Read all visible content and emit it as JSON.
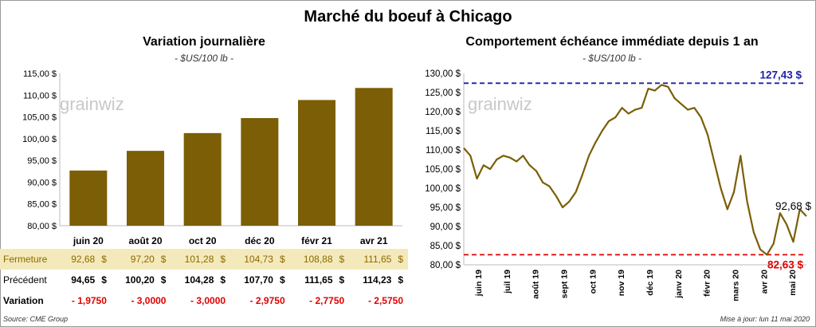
{
  "title": "Marché du boeuf à Chicago",
  "left_panel": {
    "title": "Variation journalière",
    "subtitle": "- $US/100 lb -",
    "watermark": "grainwiz"
  },
  "right_panel": {
    "title": "Comportement échéance immédiate depuis 1 an",
    "subtitle": "- $US/100 lb -",
    "watermark": "grainwiz"
  },
  "table": {
    "rows": [
      {
        "label": "Fermeture",
        "values": [
          "92,68",
          "97,20",
          "101,28",
          "104,73",
          "108,88",
          "111,65"
        ],
        "unit": "$"
      },
      {
        "label": "Précédent",
        "values": [
          "94,65",
          "100,20",
          "104,28",
          "107,70",
          "111,65",
          "114,23"
        ],
        "unit": "$"
      },
      {
        "label": "Variation",
        "values": [
          "- 1,9750",
          "- 3,0000",
          "- 3,0000",
          "- 2,9750",
          "- 2,7750",
          "- 2,5750"
        ],
        "unit": ""
      }
    ]
  },
  "footer": {
    "source": "Source: CME Group",
    "updated": "Mise à jour: lun 11 mai 2020"
  },
  "colors": {
    "bar": "#7b5e05",
    "line": "#7b5e05",
    "max_line": "#1f1fa8",
    "min_line": "#e00000",
    "ferm_bg": "#f4e9bb"
  },
  "chart_data": [
    {
      "type": "bar",
      "title": "Variation journalière",
      "subtitle": "- $US/100 lb -",
      "categories": [
        "juin 20",
        "août 20",
        "oct 20",
        "déc 20",
        "févr 21",
        "avr 21"
      ],
      "values": [
        92.68,
        97.2,
        101.28,
        104.73,
        108.88,
        111.65
      ],
      "ylim": [
        80,
        115
      ],
      "yticks": [
        "80,00 $",
        "85,00 $",
        "90,00 $",
        "95,00 $",
        "100,00 $",
        "105,00 $",
        "110,00 $",
        "115,00 $"
      ],
      "grid": false
    },
    {
      "type": "line",
      "title": "Comportement échéance immédiate depuis 1 an",
      "subtitle": "- $US/100 lb -",
      "ylim": [
        80,
        130
      ],
      "yticks": [
        "80,00 $",
        "85,00 $",
        "90,00 $",
        "95,00 $",
        "100,00 $",
        "105,00 $",
        "110,00 $",
        "115,00 $",
        "120,00 $",
        "125,00 $",
        "130,00 $"
      ],
      "xticks": [
        "juin 19",
        "juil 19",
        "août 19",
        "sept 19",
        "oct 19",
        "nov 19",
        "déc 19",
        "janv 20",
        "févr 20",
        "mars 20",
        "avr 20",
        "mai 20"
      ],
      "x": [
        "2019-05-13",
        "2019-05-20",
        "2019-05-27",
        "2019-06-03",
        "2019-06-10",
        "2019-06-17",
        "2019-06-24",
        "2019-07-01",
        "2019-07-08",
        "2019-07-15",
        "2019-07-22",
        "2019-07-29",
        "2019-08-05",
        "2019-08-12",
        "2019-08-19",
        "2019-08-26",
        "2019-09-02",
        "2019-09-09",
        "2019-09-16",
        "2019-09-23",
        "2019-09-30",
        "2019-10-07",
        "2019-10-14",
        "2019-10-21",
        "2019-10-28",
        "2019-11-04",
        "2019-11-11",
        "2019-11-18",
        "2019-11-25",
        "2019-12-02",
        "2019-12-09",
        "2019-12-16",
        "2019-12-23",
        "2019-12-30",
        "2020-01-06",
        "2020-01-13",
        "2020-01-20",
        "2020-01-27",
        "2020-02-03",
        "2020-02-10",
        "2020-02-17",
        "2020-02-24",
        "2020-03-02",
        "2020-03-09",
        "2020-03-16",
        "2020-03-23",
        "2020-03-30",
        "2020-04-06",
        "2020-04-13",
        "2020-04-20",
        "2020-04-27",
        "2020-05-04",
        "2020-05-11"
      ],
      "values": [
        110.5,
        108.5,
        102.5,
        106.0,
        105.0,
        107.5,
        108.5,
        108.0,
        107.0,
        108.5,
        106.0,
        104.5,
        101.5,
        100.5,
        98.0,
        95.0,
        96.5,
        99.0,
        103.5,
        108.5,
        112.0,
        115.0,
        117.5,
        118.5,
        121.0,
        119.5,
        120.5,
        121.0,
        126.0,
        125.5,
        127.0,
        126.5,
        123.5,
        122.0,
        120.5,
        121.0,
        118.5,
        114.0,
        107.0,
        100.0,
        94.5,
        99.0,
        108.5,
        96.5,
        88.5,
        84.0,
        82.63,
        85.5,
        93.5,
        90.5,
        86.0,
        94.5,
        92.68
      ],
      "annotations": {
        "max": "127,43 $",
        "min": "82,63 $",
        "last": "92,68 $"
      },
      "max_value": 127.43,
      "min_value": 82.63,
      "last_value": 92.68,
      "grid": false
    }
  ]
}
